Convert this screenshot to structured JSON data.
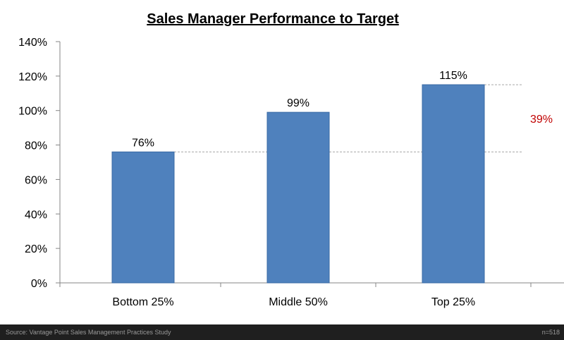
{
  "chart_data": {
    "type": "bar",
    "title": "Sales Manager Performance to Target",
    "categories": [
      "Bottom 25%",
      "Middle 50%",
      "Top 25%"
    ],
    "values": [
      76,
      99,
      115
    ],
    "value_labels": [
      "76%",
      "99%",
      "115%"
    ],
    "ylim": [
      0,
      140
    ],
    "yticks": [
      0,
      20,
      40,
      60,
      80,
      100,
      120,
      140
    ],
    "ytick_labels": [
      "0%",
      "20%",
      "40%",
      "60%",
      "80%",
      "100%",
      "120%",
      "140%"
    ],
    "grid": false,
    "bar_color": "#4f81bd",
    "reference_lines": [
      76,
      115
    ],
    "annotation": {
      "text": "39%",
      "color": "#c00000"
    }
  },
  "footer": {
    "source": "Source: Vantage Point Sales Management Practices Study",
    "n": "n=518"
  }
}
